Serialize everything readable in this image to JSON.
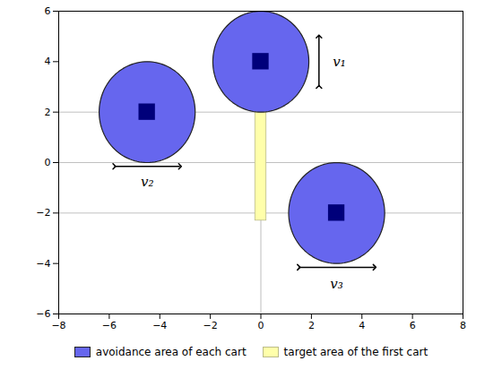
{
  "chart_data": {
    "type": "diagram",
    "xlim": [
      -8,
      8
    ],
    "ylim": [
      -6,
      6
    ],
    "xticks": [
      -8,
      -6,
      -4,
      -2,
      0,
      2,
      4,
      6,
      8
    ],
    "yticks": [
      -6,
      -4,
      -2,
      0,
      2,
      4,
      6
    ],
    "hlines": [
      2,
      -2,
      0
    ],
    "vlines": [
      0
    ],
    "ellipses": [
      {
        "cx": 0.0,
        "cy": 4.0,
        "rx": 1.9,
        "ry": 2.0,
        "color": "#6666EE",
        "edgecolor": "#222222"
      },
      {
        "cx": -4.5,
        "cy": 2.0,
        "rx": 1.9,
        "ry": 2.0,
        "color": "#6666EE",
        "edgecolor": "#222222"
      },
      {
        "cx": 3.0,
        "cy": -2.0,
        "rx": 1.9,
        "ry": 2.0,
        "color": "#6666EE",
        "edgecolor": "#222222"
      }
    ],
    "squares": [
      {
        "cx": 0.0,
        "cy": 4.0,
        "size": 0.65,
        "color": "#00007A"
      },
      {
        "cx": -4.5,
        "cy": 2.0,
        "size": 0.65,
        "color": "#00007A"
      },
      {
        "cx": 3.0,
        "cy": -2.0,
        "size": 0.65,
        "color": "#00007A"
      }
    ],
    "rectangle": {
      "x": -0.22,
      "y": -2.3,
      "width": 0.44,
      "height": 4.5,
      "color": "#FFFFAA",
      "edgecolor": "#BBBB88"
    },
    "arrows": [
      {
        "x1": 2.3,
        "y1": 3.0,
        "x2": 2.3,
        "y2": 5.0,
        "label": "v₁",
        "tx": 2.85,
        "ty": 4.0
      },
      {
        "x1": -5.8,
        "y1": -0.15,
        "x2": -3.2,
        "y2": -0.15,
        "label": "v₂",
        "tx": -4.5,
        "ty": -0.55
      },
      {
        "x1": 1.5,
        "y1": -4.15,
        "x2": 4.5,
        "y2": -4.15,
        "label": "v₃",
        "tx": 3.0,
        "ty": -4.6
      }
    ],
    "legend_entries": [
      {
        "name": "avoidance area of each cart",
        "color": "#6666EE",
        "edgecolor": "#222222"
      },
      {
        "name": "target area of the first cart",
        "color": "#FFFFAA",
        "edgecolor": "#BBBB88"
      }
    ]
  }
}
